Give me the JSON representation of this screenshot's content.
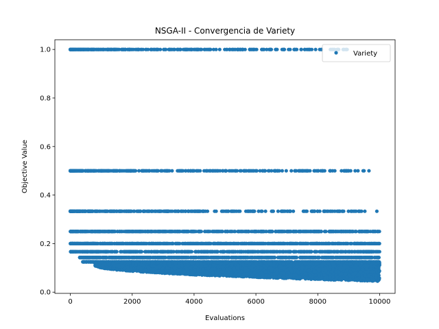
{
  "chart_data": {
    "type": "scatter",
    "title": "NSGA-II - Convergencia de Variety",
    "xlabel": "Evaluations",
    "ylabel": "Objective Value",
    "xlim": [
      -500,
      10500
    ],
    "ylim": [
      -0.005,
      1.04
    ],
    "xticks": [
      0,
      2000,
      4000,
      6000,
      8000,
      10000
    ],
    "xtick_labels": [
      "0",
      "2000",
      "4000",
      "6000",
      "8000",
      "10000"
    ],
    "yticks": [
      0.0,
      0.2,
      0.4,
      0.6,
      0.8,
      1.0
    ],
    "ytick_labels": [
      "0.0",
      "0.2",
      "0.4",
      "0.6",
      "0.8",
      "1.0"
    ],
    "grid": false,
    "legend": {
      "position": "top-right",
      "entries": [
        "Variety"
      ]
    },
    "series": [
      {
        "name": "Variety",
        "color": "#1f77b4",
        "levels": [
          {
            "y": 1.0,
            "x_range": [
              0,
              9000
            ]
          },
          {
            "y": 0.5,
            "x_range": [
              0,
              9700
            ]
          },
          {
            "y": 0.3333,
            "x_range": [
              0,
              10000
            ]
          },
          {
            "y": 0.25,
            "x_range": [
              0,
              10000
            ]
          },
          {
            "y": 0.2,
            "x_range": [
              0,
              10000
            ]
          },
          {
            "y": 0.1667,
            "x_range": [
              0,
              10000
            ]
          },
          {
            "y": 0.1429,
            "x_range": [
              300,
              10000
            ]
          },
          {
            "y": 0.125,
            "x_range": [
              400,
              10000
            ]
          }
        ],
        "dense_band": {
          "x_range": [
            800,
            10000
          ],
          "upper_y": 0.125,
          "lower_y_start": 0.11,
          "lower_y_end": 0.045
        }
      }
    ]
  }
}
